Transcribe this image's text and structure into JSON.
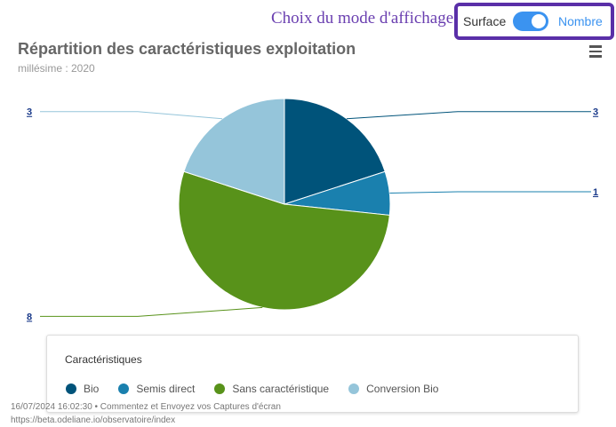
{
  "header": {
    "mode_label": "Choix du mode d'affichage",
    "toggle_left": "Surface",
    "toggle_right": "Nombre",
    "toggle_on": true
  },
  "chart_data": {
    "type": "pie",
    "title": "Répartition des caractéristiques exploitation",
    "subtitle": "millésime : 2020",
    "legend_title": "Caractéristiques",
    "legend_position": "bottom",
    "categories": [
      "Bio",
      "Semis direct",
      "Sans caractéristique",
      "Conversion Bio"
    ],
    "values": [
      3,
      1,
      8,
      3
    ],
    "colors": [
      "#00537a",
      "#1a80ae",
      "#58921a",
      "#95c5da"
    ]
  },
  "footer": {
    "line1": "16/07/2024 16:02:30 • Commentez et Envoyez vos Captures d'écran",
    "line2": "https://beta.odeliane.io/observatoire/index"
  }
}
